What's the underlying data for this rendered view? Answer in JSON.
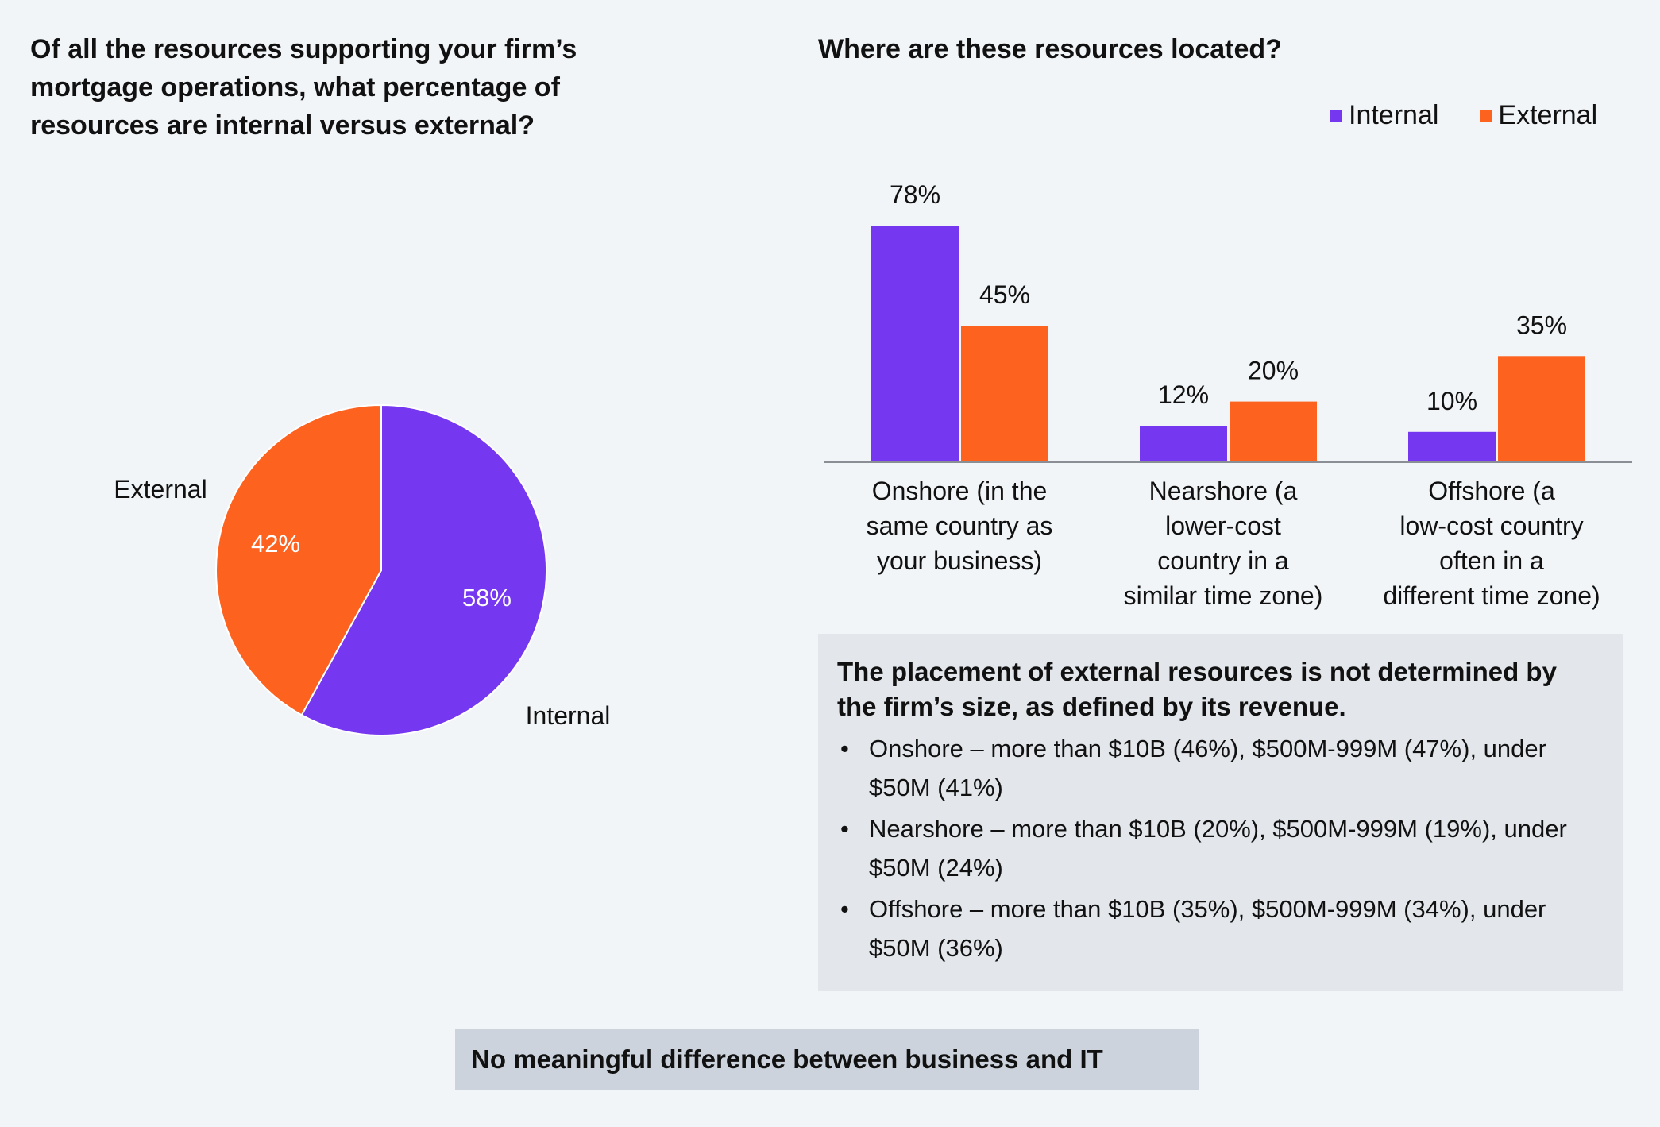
{
  "left_question": "Of all the resources supporting your firm’s mortgage operations, what percentage of resources are internal versus external?",
  "right_question": "Where are these resources located?",
  "colors": {
    "internal": "#7537f0",
    "external": "#fd621f",
    "axis": "#8a8f96",
    "background": "#f2f5f8"
  },
  "chart_data": [
    {
      "type": "pie",
      "slices": [
        {
          "name": "Internal",
          "value": 58,
          "label": "58%",
          "color": "#7537f0"
        },
        {
          "name": "External",
          "value": 42,
          "label": "42%",
          "color": "#fd621f"
        }
      ]
    },
    {
      "type": "bar",
      "categories": [
        "Onshore (in the same country as your business)",
        "Nearshore (a lower-cost country in a similar time zone)",
        "Offshore (a low-cost country often in a different time zone)"
      ],
      "series": [
        {
          "name": "Internal",
          "values": [
            78,
            12,
            10
          ],
          "labels": [
            "78%",
            "12%",
            "10%"
          ],
          "color": "#7537f0"
        },
        {
          "name": "External",
          "values": [
            45,
            20,
            35
          ],
          "labels": [
            "45%",
            "20%",
            "35%"
          ],
          "color": "#fd621f"
        }
      ],
      "legend": "top-right",
      "grid": false
    }
  ],
  "category_lines": [
    [
      "Onshore (in the",
      "same country as",
      "your business)"
    ],
    [
      "Nearshore (a",
      "lower-cost",
      "country in a",
      "similar time zone)"
    ],
    [
      "Offshore (a",
      "low-cost country",
      "often in a",
      "different time zone)"
    ]
  ],
  "note": {
    "heading": "The placement of external resources is not determined by the firm’s size, as defined by its revenue.",
    "bullet": "•",
    "items": [
      "Onshore – more than $10B (46%), $500M-999M (47%), under $50M (41%)",
      "Nearshore – more than $10B (20%), $500M-999M (19%), under $50M (24%)",
      "Offshore – more than $10B (35%), $500M-999M (34%), under $50M (36%)"
    ]
  },
  "footer": "No meaningful difference between business and IT"
}
